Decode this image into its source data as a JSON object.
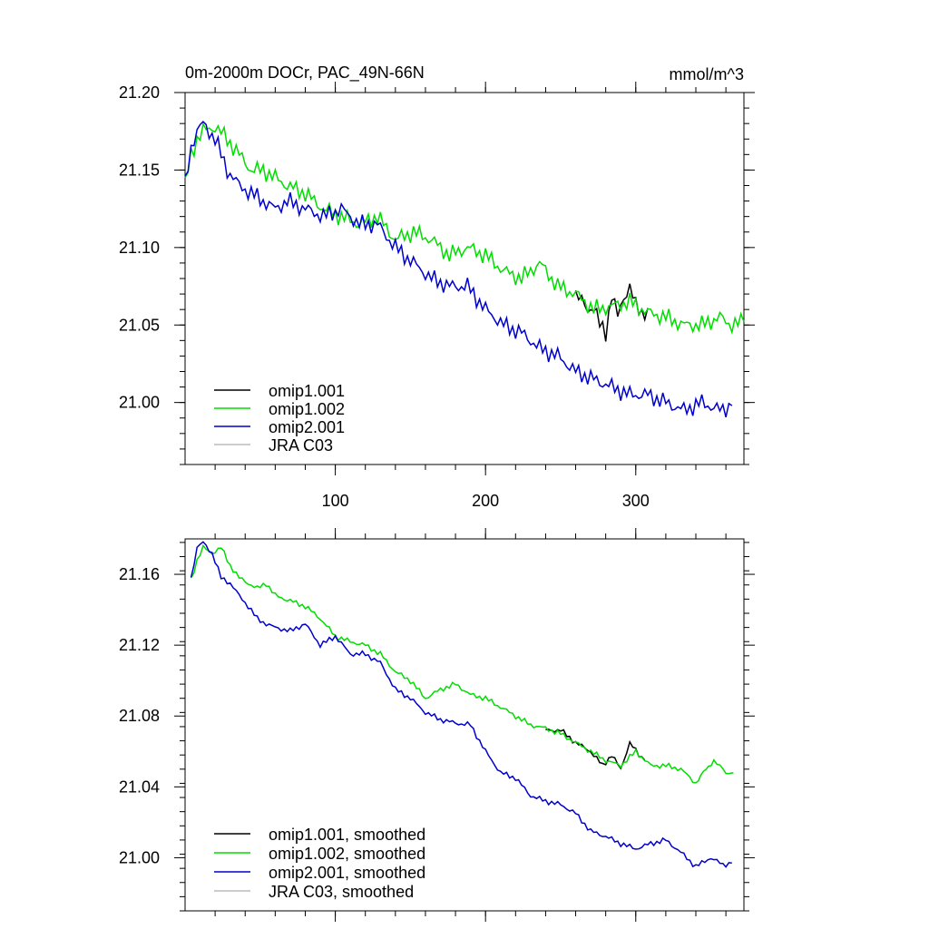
{
  "chart_data": [
    {
      "type": "line",
      "title": "0m-2000m DOCr, PAC_49N-66N",
      "units": "mmol/m^3",
      "xlim": [
        0,
        372
      ],
      "ylim": [
        20.96,
        21.2
      ],
      "xticks": [
        100,
        200,
        300
      ],
      "xtick_labels": [
        "100",
        "200",
        "300"
      ],
      "yticks": [
        21.0,
        21.05,
        21.1,
        21.15,
        21.2
      ],
      "ytick_labels": [
        "21.00",
        "21.05",
        "21.10",
        "21.15",
        "21.20"
      ],
      "legend": [
        "omip1.001",
        "omip1.002",
        "omip2.001",
        "JRA C03"
      ],
      "legend_position": "bottom-left",
      "series": [
        {
          "name": "omip1.001",
          "color": "#000000",
          "x": [
            260,
            264,
            268,
            272,
            276,
            280,
            284,
            288,
            292,
            296,
            300,
            304,
            308
          ],
          "y": [
            21.07,
            21.065,
            21.06,
            21.062,
            21.05,
            21.045,
            21.07,
            21.055,
            21.068,
            21.075,
            21.062,
            21.058,
            21.061
          ]
        },
        {
          "name": "omip1.002",
          "color": "#00dd00",
          "x": [
            0,
            4,
            8,
            12,
            20,
            28,
            36,
            44,
            52,
            60,
            68,
            80,
            92,
            104,
            116,
            128,
            140,
            152,
            164,
            176,
            188,
            200,
            212,
            224,
            236,
            248,
            260,
            272,
            284,
            296,
            308,
            320,
            332,
            344,
            356,
            364,
            372
          ],
          "y": [
            21.14,
            21.16,
            21.17,
            21.175,
            21.178,
            21.17,
            21.16,
            21.15,
            21.15,
            21.145,
            21.14,
            21.135,
            21.125,
            21.12,
            21.115,
            21.12,
            21.105,
            21.11,
            21.105,
            21.095,
            21.1,
            21.095,
            21.085,
            21.08,
            21.09,
            21.075,
            21.07,
            21.06,
            21.062,
            21.065,
            21.058,
            21.055,
            21.05,
            21.05,
            21.055,
            21.05,
            21.052
          ]
        },
        {
          "name": "omip2.001",
          "color": "#0000cc",
          "x": [
            0,
            4,
            8,
            12,
            20,
            28,
            36,
            44,
            52,
            60,
            68,
            80,
            92,
            104,
            116,
            128,
            140,
            152,
            164,
            176,
            188,
            200,
            212,
            224,
            236,
            248,
            260,
            272,
            284,
            296,
            308,
            320,
            332,
            344,
            356,
            364
          ],
          "y": [
            21.14,
            21.165,
            21.175,
            21.18,
            21.17,
            21.15,
            21.14,
            21.135,
            21.13,
            21.125,
            21.13,
            21.125,
            21.12,
            21.125,
            21.115,
            21.115,
            21.1,
            21.09,
            21.08,
            21.075,
            21.075,
            21.06,
            21.05,
            21.045,
            21.035,
            21.03,
            21.02,
            21.015,
            21.01,
            21.005,
            21.005,
            21.0,
            20.995,
            21.0,
            20.995,
            20.998
          ]
        },
        {
          "name": "JRA C03",
          "color": "#bbbbbb",
          "x": [],
          "y": []
        }
      ]
    },
    {
      "type": "line",
      "title": "",
      "xlim": [
        0,
        372
      ],
      "ylim": [
        20.97,
        21.18
      ],
      "xticks": [
        100,
        200,
        300
      ],
      "xtick_labels": [
        "",
        "",
        ""
      ],
      "yticks": [
        21.0,
        21.04,
        21.08,
        21.12,
        21.16
      ],
      "ytick_labels": [
        "21.00",
        "21.04",
        "21.08",
        "21.12",
        "21.16"
      ],
      "legend": [
        "omip1.001, smoothed",
        "omip1.002, smoothed",
        "omip2.001, smoothed",
        "JRA C03, smoothed"
      ],
      "legend_position": "bottom-left",
      "series": [
        {
          "name": "omip1.001, smoothed",
          "color": "#000000",
          "x": [
            240,
            250,
            260,
            270,
            278,
            284,
            290,
            296,
            302,
            306
          ],
          "y": [
            21.072,
            21.072,
            21.065,
            21.06,
            21.052,
            21.058,
            21.05,
            21.065,
            21.058,
            21.055
          ]
        },
        {
          "name": "omip1.002, smoothed",
          "color": "#00dd00",
          "x": [
            4,
            8,
            12,
            18,
            24,
            30,
            36,
            42,
            48,
            54,
            60,
            70,
            80,
            90,
            100,
            110,
            120,
            130,
            140,
            150,
            160,
            170,
            180,
            190,
            200,
            210,
            220,
            230,
            240,
            250,
            260,
            270,
            280,
            290,
            300,
            310,
            320,
            330,
            340,
            345,
            352,
            360,
            365
          ],
          "y": [
            21.157,
            21.168,
            21.175,
            21.172,
            21.175,
            21.165,
            21.158,
            21.155,
            21.152,
            21.155,
            21.148,
            21.145,
            21.142,
            21.135,
            21.125,
            21.122,
            21.12,
            21.115,
            21.105,
            21.1,
            21.09,
            21.095,
            21.098,
            21.092,
            21.09,
            21.085,
            21.08,
            21.075,
            21.073,
            21.07,
            21.065,
            21.06,
            21.055,
            21.052,
            21.06,
            21.052,
            21.052,
            21.05,
            21.042,
            21.048,
            21.055,
            21.048,
            21.048
          ]
        },
        {
          "name": "omip2.001, smoothed",
          "color": "#0000cc",
          "x": [
            4,
            8,
            12,
            18,
            24,
            30,
            36,
            42,
            48,
            54,
            60,
            70,
            80,
            90,
            100,
            110,
            120,
            130,
            140,
            150,
            160,
            170,
            180,
            190,
            200,
            210,
            220,
            230,
            240,
            250,
            260,
            270,
            280,
            290,
            300,
            310,
            320,
            330,
            340,
            350,
            358,
            364
          ],
          "y": [
            21.158,
            21.175,
            21.178,
            21.172,
            21.158,
            21.155,
            21.148,
            21.142,
            21.135,
            21.132,
            21.13,
            21.128,
            21.132,
            21.12,
            21.125,
            21.115,
            21.115,
            21.11,
            21.095,
            21.09,
            21.082,
            21.078,
            21.076,
            21.075,
            21.06,
            21.048,
            21.045,
            21.035,
            21.032,
            21.03,
            21.025,
            21.015,
            21.012,
            21.008,
            21.005,
            21.008,
            21.01,
            21.003,
            20.995,
            21.0,
            20.996,
            20.997
          ]
        },
        {
          "name": "JRA C03, smoothed",
          "color": "#bbbbbb",
          "x": [],
          "y": []
        }
      ]
    }
  ]
}
